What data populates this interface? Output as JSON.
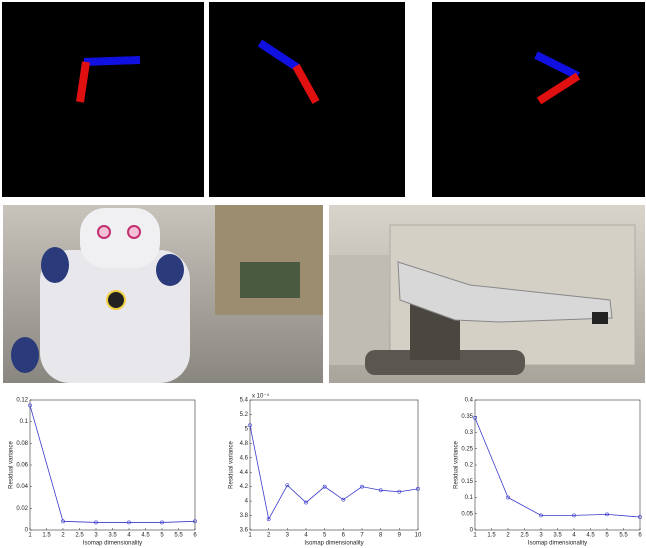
{
  "chart_data": [
    {
      "type": "line",
      "x_label": "Isomap dimensionality",
      "y_label": "Residual variance",
      "x": [
        1,
        2,
        3,
        4,
        5,
        6
      ],
      "series": [
        {
          "color": "#3a3acc",
          "values": [
            0.115,
            0.008,
            0.007,
            0.007,
            0.007,
            0.008
          ]
        }
      ],
      "xlim": [
        1,
        6
      ],
      "xticks": [
        1,
        1.5,
        2,
        2.5,
        3,
        3.5,
        4,
        4.5,
        5,
        5.5,
        6
      ],
      "ylim": [
        0,
        0.12
      ],
      "yticks": [
        0,
        0.02,
        0.04,
        0.06,
        0.08,
        0.1,
        0.12
      ]
    },
    {
      "type": "line",
      "x_label": "Isomap dimensionality",
      "y_label": "Residual variance",
      "y_scale_label": "x 10⁻⁴",
      "x": [
        1,
        2,
        3,
        4,
        5,
        6,
        7,
        8,
        9,
        10
      ],
      "series": [
        {
          "color": "#3a3acc",
          "values": [
            5.05,
            3.75,
            4.22,
            3.98,
            4.2,
            4.02,
            4.2,
            4.15,
            4.13,
            4.17
          ]
        }
      ],
      "xlim": [
        1,
        10
      ],
      "xticks": [
        1,
        2,
        3,
        4,
        5,
        6,
        7,
        8,
        9,
        10
      ],
      "ylim": [
        3.6,
        5.4
      ],
      "yticks": [
        3.6,
        3.8,
        4,
        4.2,
        4.4,
        4.6,
        4.8,
        5,
        5.2,
        5.4
      ]
    },
    {
      "type": "line",
      "x_label": "Isomap dimensionality",
      "y_label": "Residual variance",
      "x": [
        1,
        2,
        3,
        4,
        5,
        6
      ],
      "series": [
        {
          "color": "#3a3acc",
          "values": [
            0.345,
            0.1,
            0.045,
            0.045,
            0.048,
            0.04
          ]
        }
      ],
      "xlim": [
        1,
        6
      ],
      "xticks": [
        1,
        1.5,
        2,
        2.5,
        3,
        3.5,
        4,
        4.5,
        5,
        5.5,
        6
      ],
      "ylim": [
        0,
        0.4
      ],
      "yticks": [
        0,
        0.05,
        0.1,
        0.15,
        0.2,
        0.25,
        0.3,
        0.35,
        0.4
      ]
    }
  ]
}
